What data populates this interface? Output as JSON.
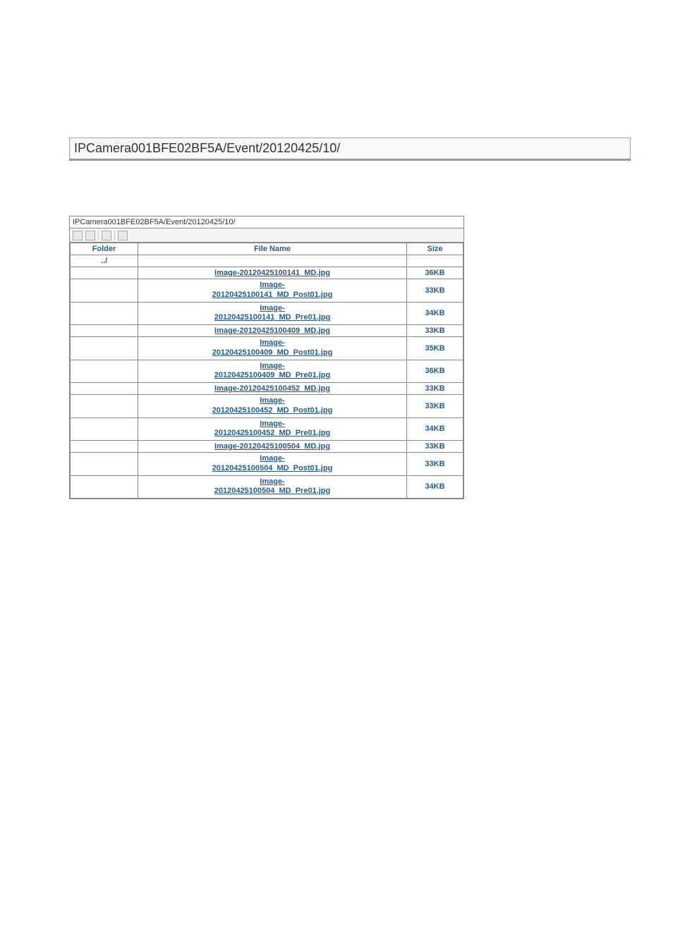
{
  "header": {
    "path": "IPCamera001BFE02BF5A/Event/20120425/10/"
  },
  "browser": {
    "path": "IPCamera001BFE02BF5A/Event/20120425/10/",
    "columns": {
      "folder": "Folder",
      "filename": "File Name",
      "size": "Size"
    },
    "up": "../",
    "rows": [
      {
        "folder": "",
        "filename_l1": "Image-20120425100141_MD.jpg",
        "filename_l2": "",
        "size": "36KB"
      },
      {
        "folder": "",
        "filename_l1": "Image-",
        "filename_l2": "20120425100141_MD_Post01.jpg",
        "size": "33KB"
      },
      {
        "folder": "",
        "filename_l1": "Image-",
        "filename_l2": "20120425100141_MD_Pre01.jpg",
        "size": "34KB"
      },
      {
        "folder": "",
        "filename_l1": "Image-20120425100409_MD.jpg",
        "filename_l2": "",
        "size": "33KB"
      },
      {
        "folder": "",
        "filename_l1": "Image-",
        "filename_l2": "20120425100409_MD_Post01.jpg",
        "size": "35KB"
      },
      {
        "folder": "",
        "filename_l1": "Image-",
        "filename_l2": "20120425100409_MD_Pre01.jpg",
        "size": "36KB"
      },
      {
        "folder": "",
        "filename_l1": "Image-20120425100452_MD.jpg",
        "filename_l2": "",
        "size": "33KB"
      },
      {
        "folder": "",
        "filename_l1": "Image-",
        "filename_l2": "20120425100452_MD_Post01.jpg",
        "size": "33KB"
      },
      {
        "folder": "",
        "filename_l1": "Image-",
        "filename_l2": "20120425100452_MD_Pre01.jpg",
        "size": "34KB"
      },
      {
        "folder": "",
        "filename_l1": "Image-20120425100504_MD.jpg",
        "filename_l2": "",
        "size": "33KB"
      },
      {
        "folder": "",
        "filename_l1": "Image-",
        "filename_l2": "20120425100504_MD_Post01.jpg",
        "size": "33KB"
      },
      {
        "folder": "",
        "filename_l1": "Image-",
        "filename_l2": "20120425100504_MD_Pre01.jpg",
        "size": "34KB"
      }
    ]
  }
}
